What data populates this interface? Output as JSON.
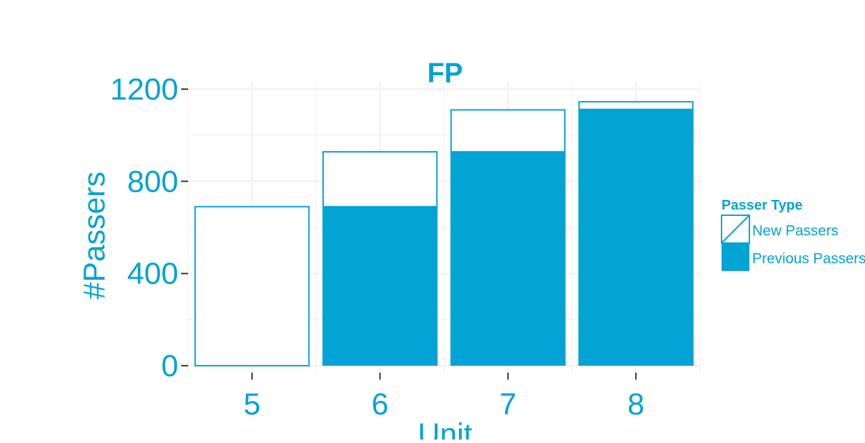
{
  "chart_data": {
    "type": "bar",
    "stacked": true,
    "title": "FP",
    "xlabel": "Unit",
    "ylabel": "#Passers",
    "categories": [
      "5",
      "6",
      "7",
      "8"
    ],
    "series": [
      {
        "name": "Previous Passers",
        "values": [
          0,
          690,
          928,
          1112
        ],
        "style": "filled"
      },
      {
        "name": "New Passers",
        "values": [
          690,
          238,
          182,
          33
        ],
        "style": "outline"
      }
    ],
    "ylim": [
      -30,
      1230
    ],
    "yticks": [
      0,
      400,
      800,
      1200
    ],
    "ytick_labels": [
      "0",
      "400",
      "800",
      "1200"
    ],
    "grid": true,
    "legend": {
      "title": "Passer Type",
      "placement": "right",
      "items": [
        "New Passers",
        "Previous Passers"
      ]
    },
    "colors": {
      "accent": "#03a3d3",
      "grid": "#efefef",
      "background": "#ffffff",
      "axis_tick": "#333333"
    }
  }
}
